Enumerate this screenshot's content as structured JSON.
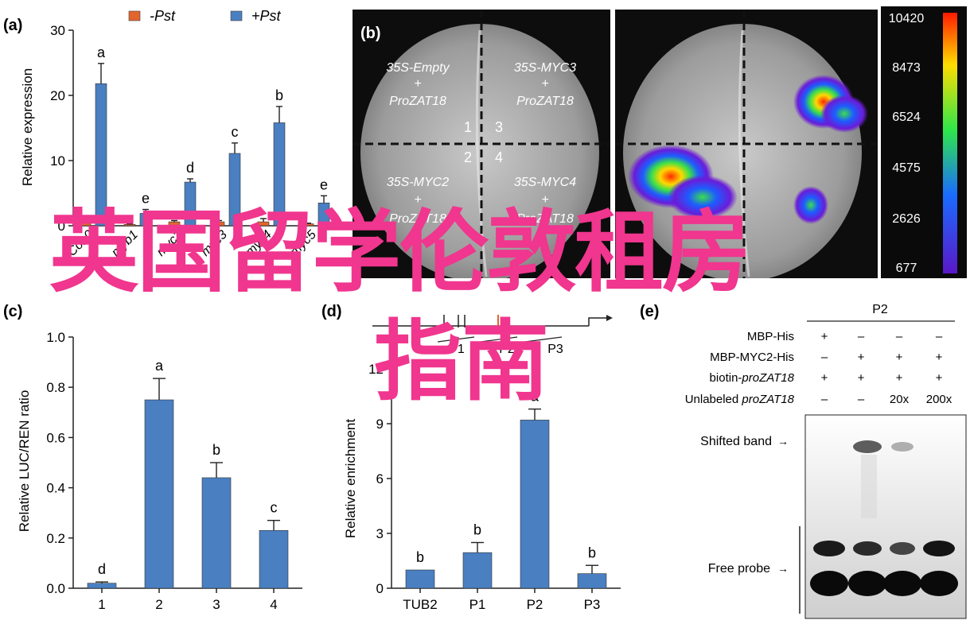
{
  "figure": {
    "panel_labels": {
      "a": "(a)",
      "b": "(b)",
      "c": "(c)",
      "d": "(d)",
      "e": "(e)"
    },
    "overlay_title_line1": "英国留学伦敦租房",
    "overlay_title_line2": "指南",
    "colors": {
      "overlay": "#f0368e",
      "bar_minus": "#e2652d",
      "bar_plus": "#4a7fc1"
    }
  },
  "panel_b": {
    "quadrants": [
      {
        "num": "1",
        "l1": "35S-Empty",
        "l2": "+",
        "l3": "ProZAT18"
      },
      {
        "num": "3",
        "l1": "35S-MYC3",
        "l2": "+",
        "l3": "ProZAT18"
      },
      {
        "num": "2",
        "l1": "35S-MYC2",
        "l2": "+",
        "l3": "ProZAT18"
      },
      {
        "num": "4",
        "l1": "35S-MYC4",
        "l2": "+",
        "l3": "ProZAT18"
      }
    ],
    "colorbar_ticks": [
      "10420",
      "8473",
      "6524",
      "4575",
      "2626",
      "677"
    ]
  },
  "panel_e": {
    "header": "P2",
    "row_labels": [
      "MBP-His",
      "MBP-MYC2-His",
      "biotin-",
      "Unlabeled "
    ],
    "row_label_italic": [
      "",
      "",
      "proZAT18",
      "proZAT18"
    ],
    "rows": [
      [
        "+",
        "–",
        "–",
        "–"
      ],
      [
        "–",
        "+",
        "+",
        "+"
      ],
      [
        "+",
        "+",
        "+",
        "+"
      ],
      [
        "–",
        "–",
        "20x",
        "200x"
      ]
    ],
    "shifted_band_label": "Shifted band",
    "free_probe_label": "Free probe",
    "arrow_glyph": "→"
  },
  "chart_data": [
    {
      "type": "bar",
      "panel": "a",
      "ylabel": "Relative expression",
      "ylim": [
        0,
        30
      ],
      "yticks": [
        "0",
        "10",
        "20",
        "30"
      ],
      "categories": [
        "Col-0",
        "myb1",
        "myc2",
        "myc3",
        "myc4",
        "myc5"
      ],
      "legend": [
        "-Pst",
        "+Pst"
      ],
      "series": [
        {
          "name": "-Pst",
          "values": [
            0.5,
            0.2,
            0.6,
            0.6,
            0.6,
            0.3
          ],
          "errors": [
            0.2,
            0.1,
            0.2,
            0.2,
            0.5,
            0.1
          ]
        },
        {
          "name": "+Pst",
          "values": [
            21.8,
            1.9,
            6.7,
            11.1,
            15.8,
            3.5
          ],
          "errors": [
            3.1,
            0.6,
            0.5,
            1.6,
            2.5,
            1.1
          ]
        }
      ],
      "significance": [
        "a",
        "e",
        "d",
        "c",
        "b",
        "e"
      ]
    },
    {
      "type": "bar",
      "panel": "c",
      "ylabel": "Relative LUC/REN ratio",
      "ylim": [
        0,
        1.0
      ],
      "yticks": [
        "0.0",
        "0.2",
        "0.4",
        "0.6",
        "0.8",
        "1.0"
      ],
      "categories": [
        "1",
        "2",
        "3",
        "4"
      ],
      "values": [
        0.02,
        0.75,
        0.44,
        0.23
      ],
      "errors": [
        0.005,
        0.085,
        0.06,
        0.04
      ],
      "significance": [
        "d",
        "a",
        "b",
        "c"
      ]
    },
    {
      "type": "bar",
      "panel": "d",
      "ylabel": "Relative enrichment",
      "ylim": [
        0,
        12
      ],
      "yticks": [
        "0",
        "3",
        "6",
        "9",
        "12"
      ],
      "categories": [
        "TUB2",
        "P1",
        "P2",
        "P3"
      ],
      "values": [
        1.0,
        1.95,
        9.2,
        0.8
      ],
      "errors": [
        0.0,
        0.55,
        0.6,
        0.45
      ],
      "significance": [
        "b",
        "b",
        "a",
        "b"
      ],
      "promoter_labels": [
        "P1",
        "P2",
        "P3"
      ]
    }
  ]
}
